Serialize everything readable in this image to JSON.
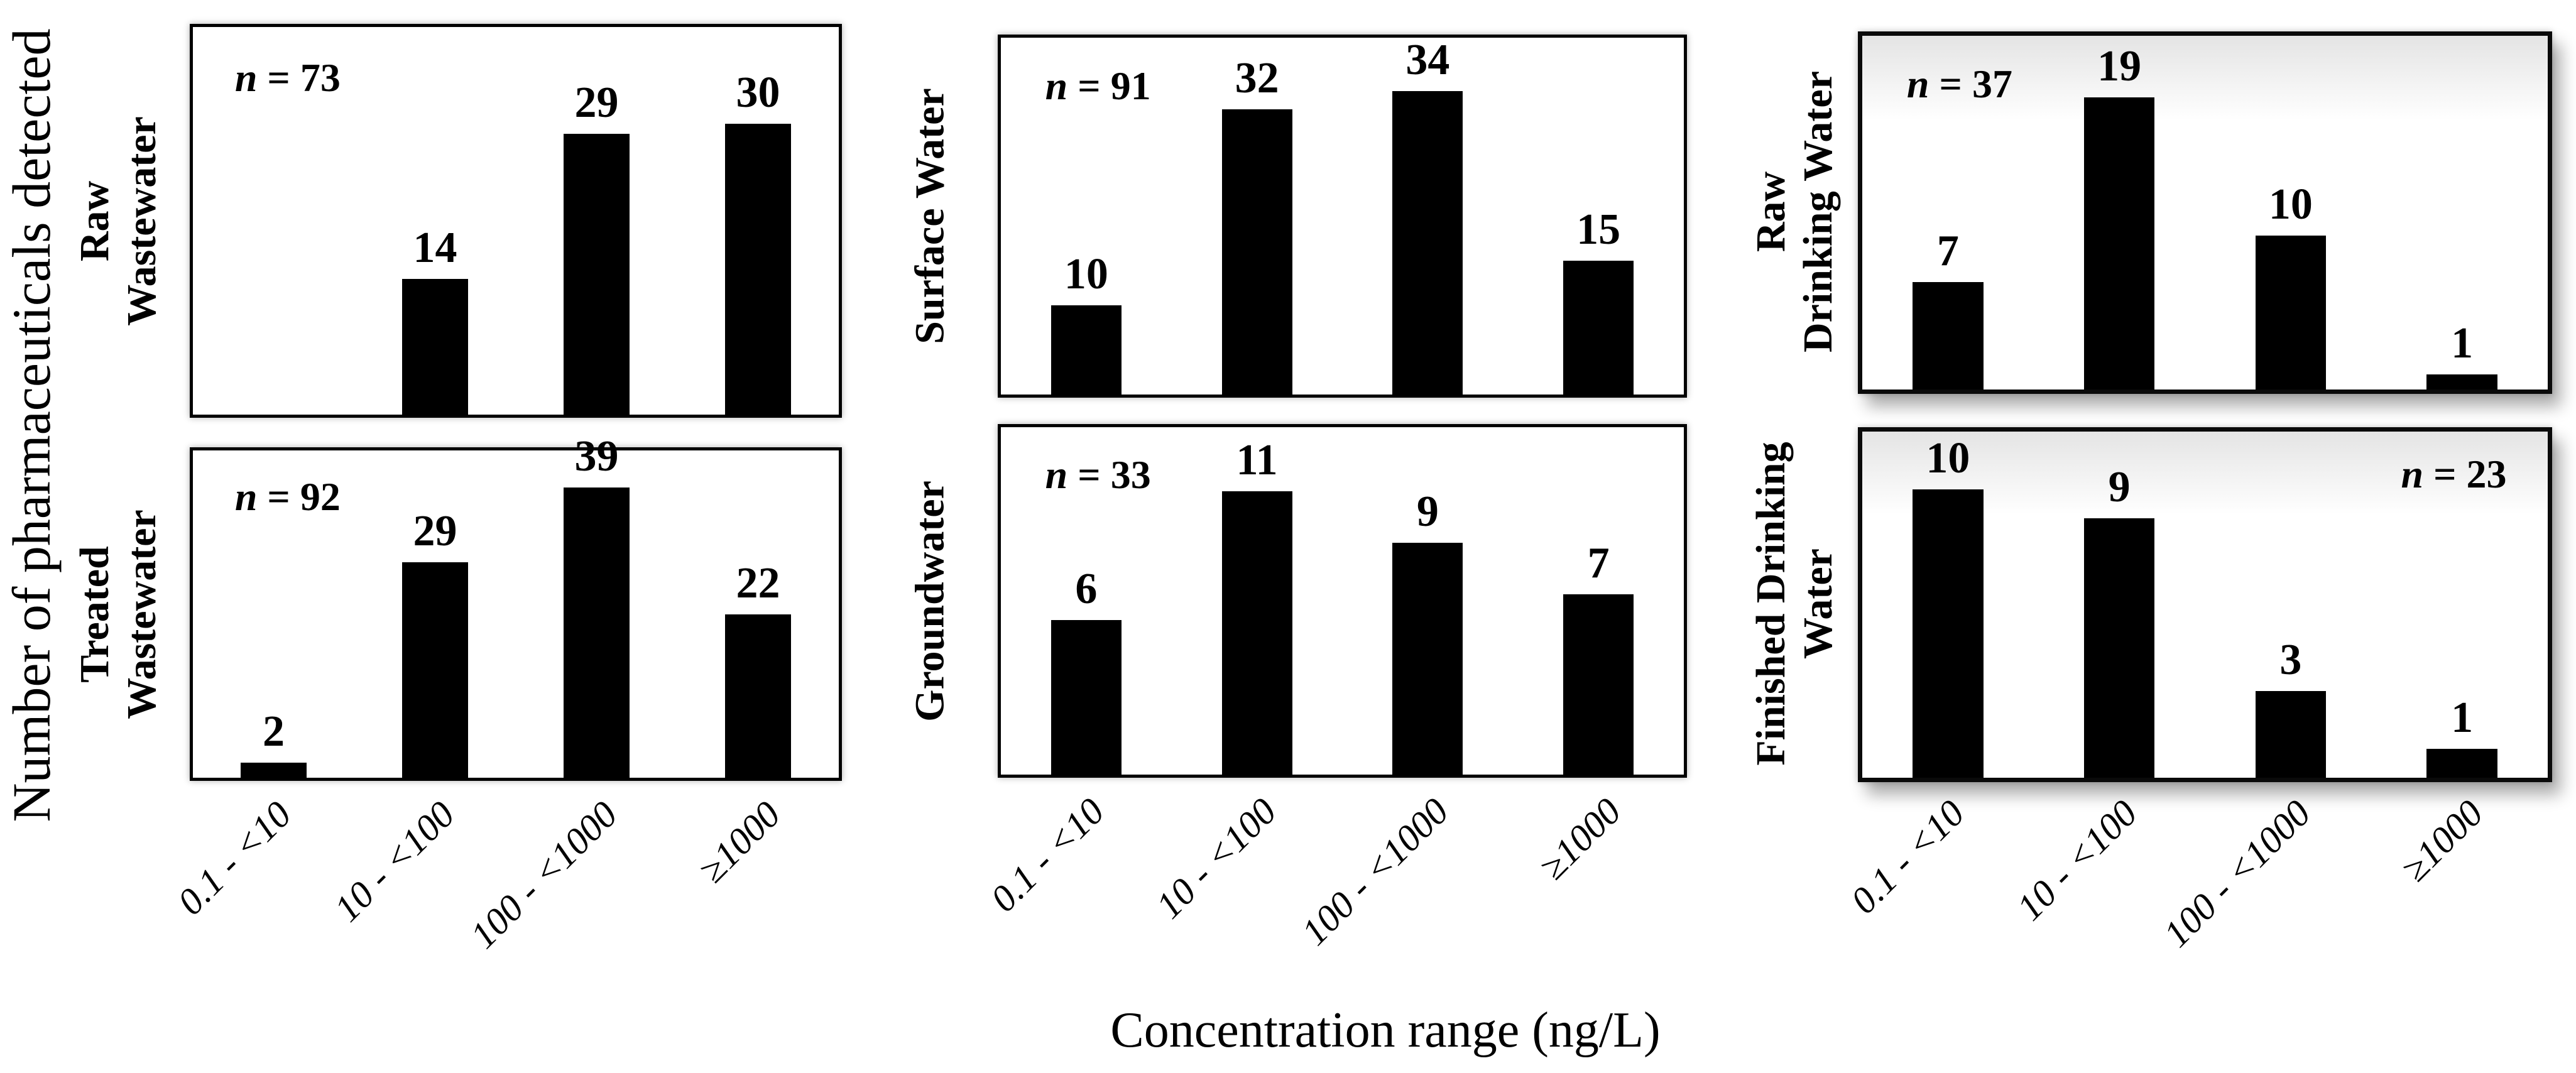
{
  "figure": {
    "y_axis_label": "Number of pharmaceuticals detected",
    "x_axis_label": "Concentration range (ng/L)",
    "bar_color": "#000000",
    "background_color": "#ffffff",
    "text_color": "#000000"
  },
  "categories": [
    "0.1 - <10",
    "10 - <100",
    "100 - <1000",
    "≥1000"
  ],
  "chart_data": [
    {
      "type": "bar",
      "id": "raw-wastewater",
      "row_label_lines": [
        "Raw",
        "Wastewater"
      ],
      "n_text": "n = 73",
      "n": 73,
      "categories": [
        "0.1 - <10",
        "10 - <100",
        "100 - <1000",
        "≥1000"
      ],
      "values": [
        0,
        14,
        29,
        30
      ],
      "ylim": [
        0,
        40
      ],
      "n_corner": "top-left",
      "col": 0,
      "row": 0,
      "legend": "off",
      "grid": "off"
    },
    {
      "type": "bar",
      "id": "surface-water",
      "row_label_lines": [
        "Surface Water"
      ],
      "n_text": "n = 91",
      "n": 91,
      "categories": [
        "0.1 - <10",
        "10 - <100",
        "100 - <1000",
        "≥1000"
      ],
      "values": [
        10,
        32,
        34,
        15
      ],
      "ylim": [
        0,
        40
      ],
      "n_corner": "top-left",
      "col": 1,
      "row": 0,
      "legend": "off",
      "grid": "off"
    },
    {
      "type": "bar",
      "id": "raw-drinking-water",
      "row_label_lines": [
        "Raw",
        "Drinking Water"
      ],
      "n_text": "n = 37",
      "n": 37,
      "categories": [
        "0.1 - <10",
        "10 - <100",
        "100 - <1000",
        "≥1000"
      ],
      "values": [
        7,
        19,
        10,
        1
      ],
      "ylim": [
        0,
        23
      ],
      "n_corner": "top-left",
      "col": 2,
      "row": 0,
      "legend": "off",
      "grid": "off"
    },
    {
      "type": "bar",
      "id": "treated-wastewater",
      "row_label_lines": [
        "Treated",
        "Wastewater"
      ],
      "n_text": "n = 92",
      "n": 92,
      "categories": [
        "0.1 - <10",
        "10 - <100",
        "100 - <1000",
        "≥1000"
      ],
      "values": [
        2,
        29,
        39,
        22
      ],
      "ylim": [
        0,
        44
      ],
      "n_corner": "top-left",
      "col": 0,
      "row": 1,
      "legend": "off",
      "grid": "off"
    },
    {
      "type": "bar",
      "id": "groundwater",
      "row_label_lines": [
        "Groundwater"
      ],
      "n_text": "n = 33",
      "n": 33,
      "categories": [
        "0.1 - <10",
        "10 - <100",
        "100 - <1000",
        "≥1000"
      ],
      "values": [
        6,
        11,
        9,
        7
      ],
      "ylim": [
        0,
        13.5
      ],
      "n_corner": "top-left",
      "col": 1,
      "row": 1,
      "legend": "off",
      "grid": "off"
    },
    {
      "type": "bar",
      "id": "finished-drinking-water",
      "row_label_lines": [
        "Finished Drinking",
        "Water"
      ],
      "n_text": "n = 23",
      "n": 23,
      "categories": [
        "0.1 - <10",
        "10 - <100",
        "100 - <1000",
        "≥1000"
      ],
      "values": [
        10,
        9,
        3,
        1
      ],
      "ylim": [
        0,
        12
      ],
      "n_corner": "top-right",
      "col": 2,
      "row": 1,
      "legend": "off",
      "grid": "off"
    }
  ]
}
